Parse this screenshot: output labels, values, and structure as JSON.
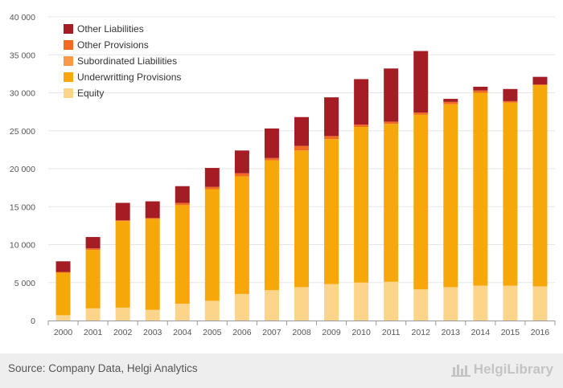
{
  "chart_data": {
    "type": "bar",
    "stacked": true,
    "categories": [
      "2000",
      "2001",
      "2002",
      "2003",
      "2004",
      "2005",
      "2006",
      "2007",
      "2008",
      "2009",
      "2010",
      "2011",
      "2012",
      "2013",
      "2014",
      "2015",
      "2016"
    ],
    "ylim": [
      0,
      40000
    ],
    "yticks": [
      0,
      5000,
      10000,
      15000,
      20000,
      25000,
      30000,
      35000,
      40000
    ],
    "ytick_labels": [
      "0",
      "5 000",
      "10 000",
      "15 000",
      "20 000",
      "25 000",
      "30 000",
      "35 000",
      "40 000"
    ],
    "grid": true,
    "legend_position": "top-left",
    "series": [
      {
        "name": "Equity",
        "color": "#fdd58a",
        "values": [
          700,
          1600,
          1700,
          1400,
          2200,
          2600,
          3500,
          4000,
          4400,
          4800,
          5000,
          5100,
          4100,
          4400,
          4600,
          4600,
          4500
        ]
      },
      {
        "name": "Underwritting Provisions",
        "color": "#f6a80a",
        "values": [
          5600,
          7700,
          11400,
          12000,
          13000,
          14700,
          15500,
          17100,
          18000,
          19100,
          20500,
          20800,
          23000,
          24100,
          25400,
          24100,
          26500
        ]
      },
      {
        "name": "Subordinated Liabilities",
        "color": "#f99a4a",
        "values": [
          0,
          0,
          0,
          0,
          0,
          0,
          0,
          0,
          0,
          0,
          0,
          0,
          0,
          0,
          0,
          0,
          0
        ]
      },
      {
        "name": "Other Provisions",
        "color": "#f26b22",
        "values": [
          100,
          200,
          100,
          100,
          300,
          300,
          400,
          300,
          600,
          400,
          300,
          300,
          300,
          300,
          300,
          200,
          100
        ]
      },
      {
        "name": "Other Liabilities",
        "color": "#a51d24",
        "values": [
          1400,
          1500,
          2300,
          2200,
          2200,
          2500,
          3000,
          3900,
          3800,
          5100,
          6000,
          7000,
          8100,
          400,
          500,
          1600,
          1000
        ]
      }
    ]
  },
  "footer": {
    "source": "Source: Company Data, Helgi Analytics",
    "brand": "HelgiLibrary"
  }
}
